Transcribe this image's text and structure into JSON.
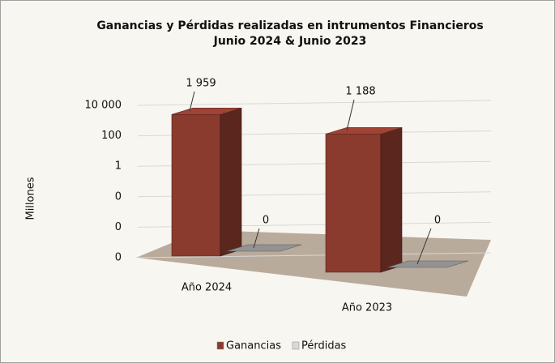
{
  "chart_data": {
    "type": "bar3d",
    "title": "Ganancias y Pérdidas realizadas en intrumentos Financieros",
    "subtitle": "Junio 2024 & Junio 2023",
    "y_label": "Millones",
    "categories": [
      "Año 2024",
      "Año 2023"
    ],
    "series": [
      {
        "name": "Ganancias",
        "color": "#8b3a2e",
        "values": [
          1959,
          1188
        ],
        "value_labels": [
          "1 959",
          "1 188"
        ]
      },
      {
        "name": "Pérdidas",
        "color": "#808080",
        "values": [
          0,
          0
        ],
        "value_labels": [
          "0",
          "0"
        ]
      }
    ],
    "log_scale": true,
    "ylim": [
      1e-06,
      10000
    ],
    "yticks": [
      {
        "value": 10000,
        "label": "10 000"
      },
      100,
      1,
      {
        "value": 0.01,
        "label": "0"
      },
      {
        "value": 0.0001,
        "label": "0"
      },
      {
        "value": 1e-06,
        "label": "0"
      }
    ],
    "grid": true,
    "legend": "bottom"
  }
}
